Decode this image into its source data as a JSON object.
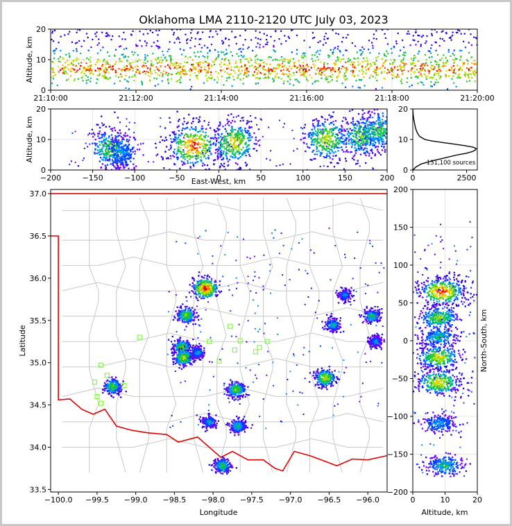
{
  "chart_data": [
    {
      "type": "heatmap",
      "panel": "altitude-time",
      "title": "Oklahoma LMA 2110-2120 UTC July 03, 2023",
      "xlabel": "",
      "ylabel": "Altitude, km",
      "ylim": [
        0,
        20
      ],
      "xticks": [
        "21:10:00",
        "21:12:00",
        "21:14:00",
        "21:16:00",
        "21:18:00",
        "21:20:00"
      ],
      "yticks": [
        "0",
        "10",
        "20"
      ],
      "density_band_km": [
        3,
        12
      ],
      "peak_altitude_km": 7
    },
    {
      "type": "heatmap",
      "panel": "altitude-eastwest",
      "xlabel": "East-West, km",
      "ylabel": "Altitude, km",
      "xlim": [
        -200,
        200
      ],
      "ylim": [
        0,
        20
      ],
      "xticks": [
        "−200",
        "−150",
        "−100",
        "−50",
        "0",
        "50",
        "100",
        "150",
        "200"
      ],
      "yticks": [
        "0",
        "10",
        "20"
      ],
      "clusters": [
        {
          "x": -128,
          "alt": 7,
          "intensity": 0.55
        },
        {
          "x": -115,
          "alt": 6,
          "intensity": 0.3
        },
        {
          "x": -30,
          "alt": 8,
          "intensity": 1.0
        },
        {
          "x": 18,
          "alt": 9,
          "intensity": 0.75
        },
        {
          "x": 128,
          "alt": 10,
          "intensity": 0.7
        },
        {
          "x": 170,
          "alt": 11,
          "intensity": 0.55
        },
        {
          "x": 190,
          "alt": 13,
          "intensity": 0.5
        }
      ]
    },
    {
      "type": "line",
      "panel": "altitude-histogram",
      "annotation": "131,100 sources",
      "xlim": [
        0,
        3000
      ],
      "ylim": [
        0,
        20
      ],
      "xticks": [
        "0",
        "2500"
      ],
      "yticks": [
        "0",
        "10",
        "20"
      ],
      "series": [
        {
          "alt": [
            0,
            1,
            2,
            3,
            4,
            5,
            5.5,
            6,
            6.5,
            7,
            7.5,
            8,
            8.5,
            9,
            9.5,
            10,
            11,
            12,
            13,
            14,
            15,
            16,
            17,
            18,
            19,
            20
          ],
          "count": [
            0,
            150,
            400,
            900,
            1500,
            2100,
            2500,
            2750,
            2900,
            2950,
            2800,
            2400,
            1900,
            1400,
            900,
            560,
            320,
            220,
            160,
            120,
            90,
            60,
            40,
            20,
            10,
            0
          ]
        }
      ]
    },
    {
      "type": "heatmap",
      "panel": "plan-view",
      "xlabel": "Longitude",
      "ylabel": "Latitude",
      "xlim": [
        -100.1,
        -95.75
      ],
      "ylim": [
        33.47,
        37.05
      ],
      "xticks": [
        "−100.0",
        "−99.5",
        "−99.0",
        "−98.5",
        "−98.0",
        "−97.5",
        "−97.0",
        "−96.5",
        "−96.0"
      ],
      "yticks": [
        "33.5",
        "34.0",
        "34.5",
        "35.0",
        "35.5",
        "36.0",
        "36.5",
        "37.0"
      ],
      "clusters": [
        {
          "lon": -98.1,
          "lat": 35.88,
          "intensity": 1.0
        },
        {
          "lon": -98.35,
          "lat": 35.56,
          "intensity": 0.6
        },
        {
          "lon": -98.4,
          "lat": 35.18,
          "intensity": 0.6
        },
        {
          "lon": -98.38,
          "lat": 35.06,
          "intensity": 0.65
        },
        {
          "lon": -98.2,
          "lat": 35.12,
          "intensity": 0.35
        },
        {
          "lon": -99.3,
          "lat": 34.72,
          "intensity": 0.55
        },
        {
          "lon": -97.7,
          "lat": 34.68,
          "intensity": 0.6
        },
        {
          "lon": -98.05,
          "lat": 34.3,
          "intensity": 0.35
        },
        {
          "lon": -97.68,
          "lat": 34.25,
          "intensity": 0.45
        },
        {
          "lon": -97.88,
          "lat": 33.78,
          "intensity": 0.5
        },
        {
          "lon": -96.55,
          "lat": 34.82,
          "intensity": 0.7
        },
        {
          "lon": -96.45,
          "lat": 35.45,
          "intensity": 0.4
        },
        {
          "lon": -95.95,
          "lat": 35.55,
          "intensity": 0.45
        },
        {
          "lon": -96.3,
          "lat": 35.8,
          "intensity": 0.3
        },
        {
          "lon": -95.9,
          "lat": 35.25,
          "intensity": 0.3
        }
      ],
      "stations": [
        {
          "lon": -99.45,
          "lat": 34.97
        },
        {
          "lon": -99.53,
          "lat": 34.77
        },
        {
          "lon": -99.5,
          "lat": 34.6
        },
        {
          "lon": -99.45,
          "lat": 34.52
        },
        {
          "lon": -99.37,
          "lat": 34.85
        },
        {
          "lon": -98.95,
          "lat": 35.3
        },
        {
          "lon": -98.05,
          "lat": 35.25
        },
        {
          "lon": -97.92,
          "lat": 35.02
        },
        {
          "lon": -97.78,
          "lat": 35.43
        },
        {
          "lon": -97.72,
          "lat": 35.15
        },
        {
          "lon": -97.65,
          "lat": 35.26
        },
        {
          "lon": -97.45,
          "lat": 35.13
        },
        {
          "lon": -97.4,
          "lat": 35.18
        },
        {
          "lon": -97.3,
          "lat": 35.25
        },
        {
          "lon": -99.15,
          "lat": 34.73
        }
      ]
    },
    {
      "type": "heatmap",
      "panel": "northsouth-altitude",
      "xlabel": "Altitude, km",
      "ylabel": "North-South, km",
      "xlim": [
        0,
        20
      ],
      "ylim": [
        -200,
        200
      ],
      "xticks": [
        "0",
        "10",
        "20"
      ],
      "yticks": [
        "200",
        "150",
        "100",
        "50",
        "0",
        "−50",
        "−100",
        "−150",
        "−200"
      ],
      "clusters": [
        {
          "ns": 65,
          "alt": 9,
          "intensity": 1.0
        },
        {
          "ns": 30,
          "alt": 8,
          "intensity": 0.55
        },
        {
          "ns": 5,
          "alt": 8,
          "intensity": 0.4
        },
        {
          "ns": -22,
          "alt": 8,
          "intensity": 0.7
        },
        {
          "ns": -55,
          "alt": 8,
          "intensity": 0.75
        },
        {
          "ns": -110,
          "alt": 8,
          "intensity": 0.3
        },
        {
          "ns": -165,
          "alt": 10,
          "intensity": 0.4
        }
      ]
    }
  ]
}
